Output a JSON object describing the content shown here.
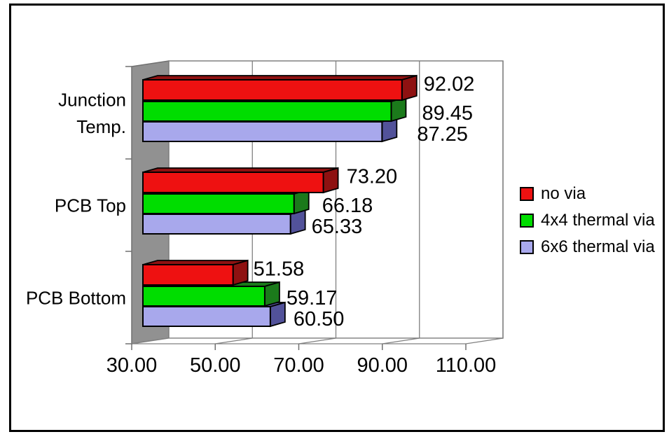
{
  "chart_data": {
    "type": "bar",
    "orientation": "horizontal-3d",
    "title": "",
    "categories": [
      "Junction Temp.",
      "PCB Top",
      "PCB Bottom"
    ],
    "category_lines": [
      [
        "Junction",
        "Temp."
      ],
      [
        "PCB Top"
      ],
      [
        "PCB Bottom"
      ]
    ],
    "series": [
      {
        "name": "no via",
        "values": [
          92.02,
          73.2,
          51.58
        ],
        "labels": [
          "92.02",
          "73.20",
          "51.58"
        ],
        "color": "#ee1111",
        "side_color": "#8e1111"
      },
      {
        "name": "4x4 thermal via",
        "values": [
          89.45,
          66.18,
          59.17
        ],
        "labels": [
          "89.45",
          "66.18",
          "59.17"
        ],
        "color": "#00dd00",
        "side_color": "#1b7a1b"
      },
      {
        "name": "6x6 thermal via",
        "values": [
          87.25,
          65.33,
          60.5
        ],
        "labels": [
          "87.25",
          "65.33",
          "60.50"
        ],
        "color": "#a8a8ec",
        "side_color": "#52529a"
      }
    ],
    "xticks": [
      "30.00",
      "50.00",
      "70.00",
      "90.00",
      "110.00"
    ],
    "xlim": [
      30,
      110
    ],
    "x_major_step": 20,
    "grid": true,
    "legend_position": "right",
    "colors": {
      "wall": "#919191",
      "grid": "#808080",
      "outline": "#000000",
      "background": "#ffffff",
      "frame": "#000000",
      "text": "#000000"
    }
  }
}
